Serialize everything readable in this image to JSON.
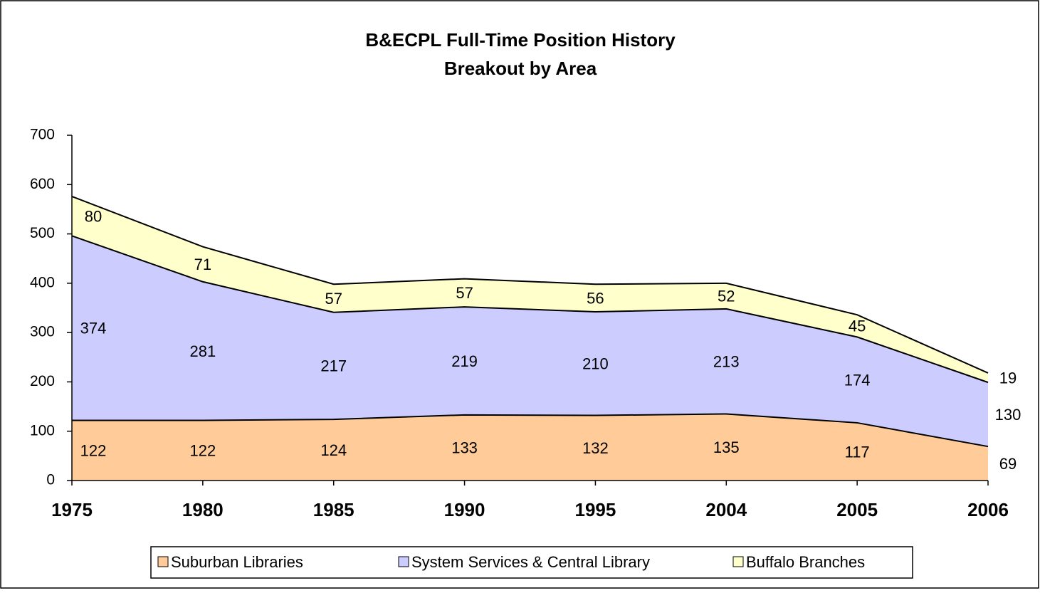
{
  "chart_data": {
    "type": "area",
    "stacked": true,
    "title": [
      "B&ECPL Full-Time Position History",
      "Breakout by Area"
    ],
    "categories": [
      "1975",
      "1980",
      "1985",
      "1990",
      "1995",
      "2004",
      "2005",
      "2006"
    ],
    "series": [
      {
        "name": "Suburban Libraries",
        "color": "#ffcc99",
        "values": [
          122,
          122,
          124,
          133,
          132,
          135,
          117,
          69
        ]
      },
      {
        "name": "System Services & Central Library",
        "color": "#ccccff",
        "values": [
          374,
          281,
          217,
          219,
          210,
          213,
          174,
          130
        ]
      },
      {
        "name": "Buffalo Branches",
        "color": "#ffffcc",
        "values": [
          80,
          71,
          57,
          57,
          56,
          52,
          45,
          19
        ]
      }
    ],
    "ylim": [
      0,
      700
    ],
    "yticks": [
      0,
      100,
      200,
      300,
      400,
      500,
      600,
      700
    ],
    "legend": "bottom"
  }
}
